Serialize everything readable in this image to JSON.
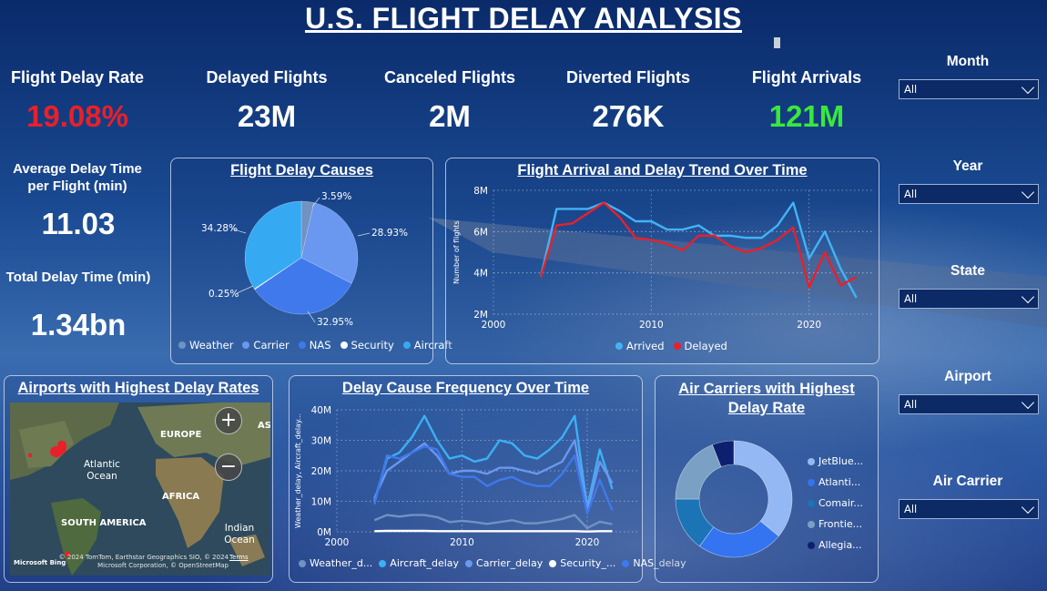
{
  "title": "U.S. FLIGHT DELAY ANALYSIS",
  "kpis": {
    "delay_rate": {
      "label": "Flight Delay Rate",
      "value": "19.08%"
    },
    "delayed": {
      "label": "Delayed Flights",
      "value": "23M"
    },
    "canceled": {
      "label": "Canceled Flights",
      "value": "2M"
    },
    "diverted": {
      "label": "Diverted Flights",
      "value": "276K"
    },
    "arrivals": {
      "label": "Flight Arrivals",
      "value": "121M"
    },
    "avg_delay": {
      "label": "Average Delay Time per Flight (min)",
      "value": "11.03"
    },
    "total_delay": {
      "label": "Total Delay Time (min)",
      "value": "1.34bn"
    }
  },
  "colors": {
    "red": "#e8202a",
    "green": "#39e83c",
    "weather": "#6f93c2",
    "carrier": "#6a97ef",
    "nas": "#3f79ec",
    "security": "#ffffff",
    "aircraft": "#35aaf2"
  },
  "slicers": [
    {
      "label": "Month",
      "value": "All"
    },
    {
      "label": "Year",
      "value": "All"
    },
    {
      "label": "State",
      "value": "All"
    },
    {
      "label": "Airport",
      "value": "All"
    },
    {
      "label": "Air Carrier",
      "value": "All"
    }
  ],
  "panels": {
    "causes": {
      "title": "Flight Delay Causes"
    },
    "trend": {
      "title": "Flight Arrival and Delay Trend Over Time"
    },
    "airports": {
      "title": "Airports with Highest Delay Rates"
    },
    "frequency": {
      "title": "Delay Cause Frequency Over Time"
    },
    "carriers": {
      "title": "Air Carriers with Highest Delay Rate"
    }
  },
  "map": {
    "labels": [
      "EUROPE",
      "AS",
      "Atlantic Ocean",
      "AFRICA",
      "SOUTH AMERICA",
      "Indian Ocean"
    ],
    "attribution": "© 2024 TomTom, Earthstar Geographics SIO, © 2024 Microsoft Corporation, © OpenStreetMap",
    "terms": "Terms",
    "logo": "Microsoft Bing",
    "zoom_in": "+",
    "zoom_out": "−"
  },
  "chart_data": [
    {
      "type": "pie",
      "title": "Flight Delay Causes",
      "categories": [
        "Weather",
        "Carrier",
        "NAS",
        "Security",
        "Aircraft"
      ],
      "values": [
        3.59,
        28.93,
        32.95,
        0.25,
        34.28
      ],
      "labels": [
        "3.59%",
        "28.93%",
        "32.95%",
        "0.25%",
        "34.28%"
      ],
      "legend": "bottom"
    },
    {
      "type": "line",
      "title": "Flight Arrival and Delay Trend Over Time",
      "ylabel": "Number of flights",
      "x": [
        2003,
        2004,
        2005,
        2006,
        2007,
        2008,
        2009,
        2010,
        2011,
        2012,
        2013,
        2014,
        2015,
        2016,
        2017,
        2018,
        2019,
        2020,
        2021,
        2022,
        2023
      ],
      "series": [
        {
          "name": "Arrived",
          "values": [
            3.8,
            7.1,
            7.1,
            7.1,
            7.4,
            7.0,
            6.5,
            6.5,
            6.1,
            6.1,
            6.3,
            5.8,
            5.8,
            5.7,
            5.7,
            6.3,
            7.4,
            4.7,
            6.0,
            4.2,
            2.8
          ]
        },
        {
          "name": "Delayed",
          "values": [
            3.8,
            6.3,
            6.4,
            6.9,
            7.4,
            6.7,
            5.7,
            5.6,
            5.4,
            5.1,
            5.8,
            5.8,
            5.3,
            5.0,
            5.2,
            5.6,
            6.2,
            3.3,
            5.0,
            3.4,
            3.8
          ]
        }
      ],
      "xticks": [
        "2000",
        "2010",
        "2020"
      ],
      "yticks": [
        "2M",
        "4M",
        "6M",
        "8M"
      ],
      "xlim": [
        2000,
        2024
      ],
      "ylim": [
        2,
        8
      ],
      "legend": "bottom"
    },
    {
      "type": "line",
      "title": "Delay Cause Frequency Over Time",
      "ylabel": "Weather_delay, Aircraft_delay...",
      "x": [
        2003,
        2004,
        2005,
        2006,
        2007,
        2008,
        2009,
        2010,
        2011,
        2012,
        2013,
        2014,
        2015,
        2016,
        2017,
        2018,
        2019,
        2020,
        2021,
        2022
      ],
      "series": [
        {
          "name": "Weather_d...",
          "values": [
            3.8,
            5.5,
            5.0,
            5.5,
            5.5,
            4.8,
            3.2,
            3.6,
            3.2,
            2.6,
            3.2,
            3.8,
            2.8,
            2.8,
            3.4,
            4.2,
            5.5,
            1.2,
            3.3,
            2.5
          ]
        },
        {
          "name": "Aircraft_delay",
          "values": [
            10,
            24,
            26,
            31,
            38,
            30,
            24,
            25,
            23,
            24,
            30,
            29,
            25,
            24,
            27,
            31,
            38,
            8,
            27,
            14
          ]
        },
        {
          "name": "Carrier_delay",
          "values": [
            11,
            20,
            23,
            26,
            29,
            25,
            19,
            20,
            20,
            19,
            21,
            21,
            20,
            19,
            21,
            23,
            30,
            7,
            23,
            16
          ]
        },
        {
          "name": "Security_...",
          "values": [
            0.2,
            0.3,
            0.3,
            0.3,
            0.3,
            0.2,
            0.2,
            0.2,
            0.2,
            0.2,
            0.2,
            0.2,
            0.2,
            0.2,
            0.2,
            0.2,
            0.2,
            0.1,
            0.2,
            0.2
          ]
        },
        {
          "name": "NAS_delay",
          "values": [
            9,
            25,
            24,
            26,
            28,
            27,
            19,
            18,
            18,
            15,
            17,
            18,
            16,
            15,
            15,
            19,
            25,
            6,
            17,
            7
          ]
        }
      ],
      "xticks": [
        "2000",
        "2010",
        "2020"
      ],
      "yticks": [
        "0M",
        "10M",
        "20M",
        "30M",
        "40M"
      ],
      "xlim": [
        2000,
        2024
      ],
      "ylim": [
        0,
        40
      ],
      "legend": "bottom"
    },
    {
      "type": "pie",
      "title": "Air Carriers with Highest Delay Rate",
      "categories": [
        "JetBlue...",
        "Atlanti...",
        "Comair...",
        "Frontie...",
        "Allegia..."
      ],
      "values": [
        36,
        24,
        15,
        19,
        6
      ],
      "colors": [
        "#94b8f4",
        "#3474f0",
        "#1a74b6",
        "#7aa0c4",
        "#0d2070"
      ],
      "legend": "right"
    }
  ]
}
